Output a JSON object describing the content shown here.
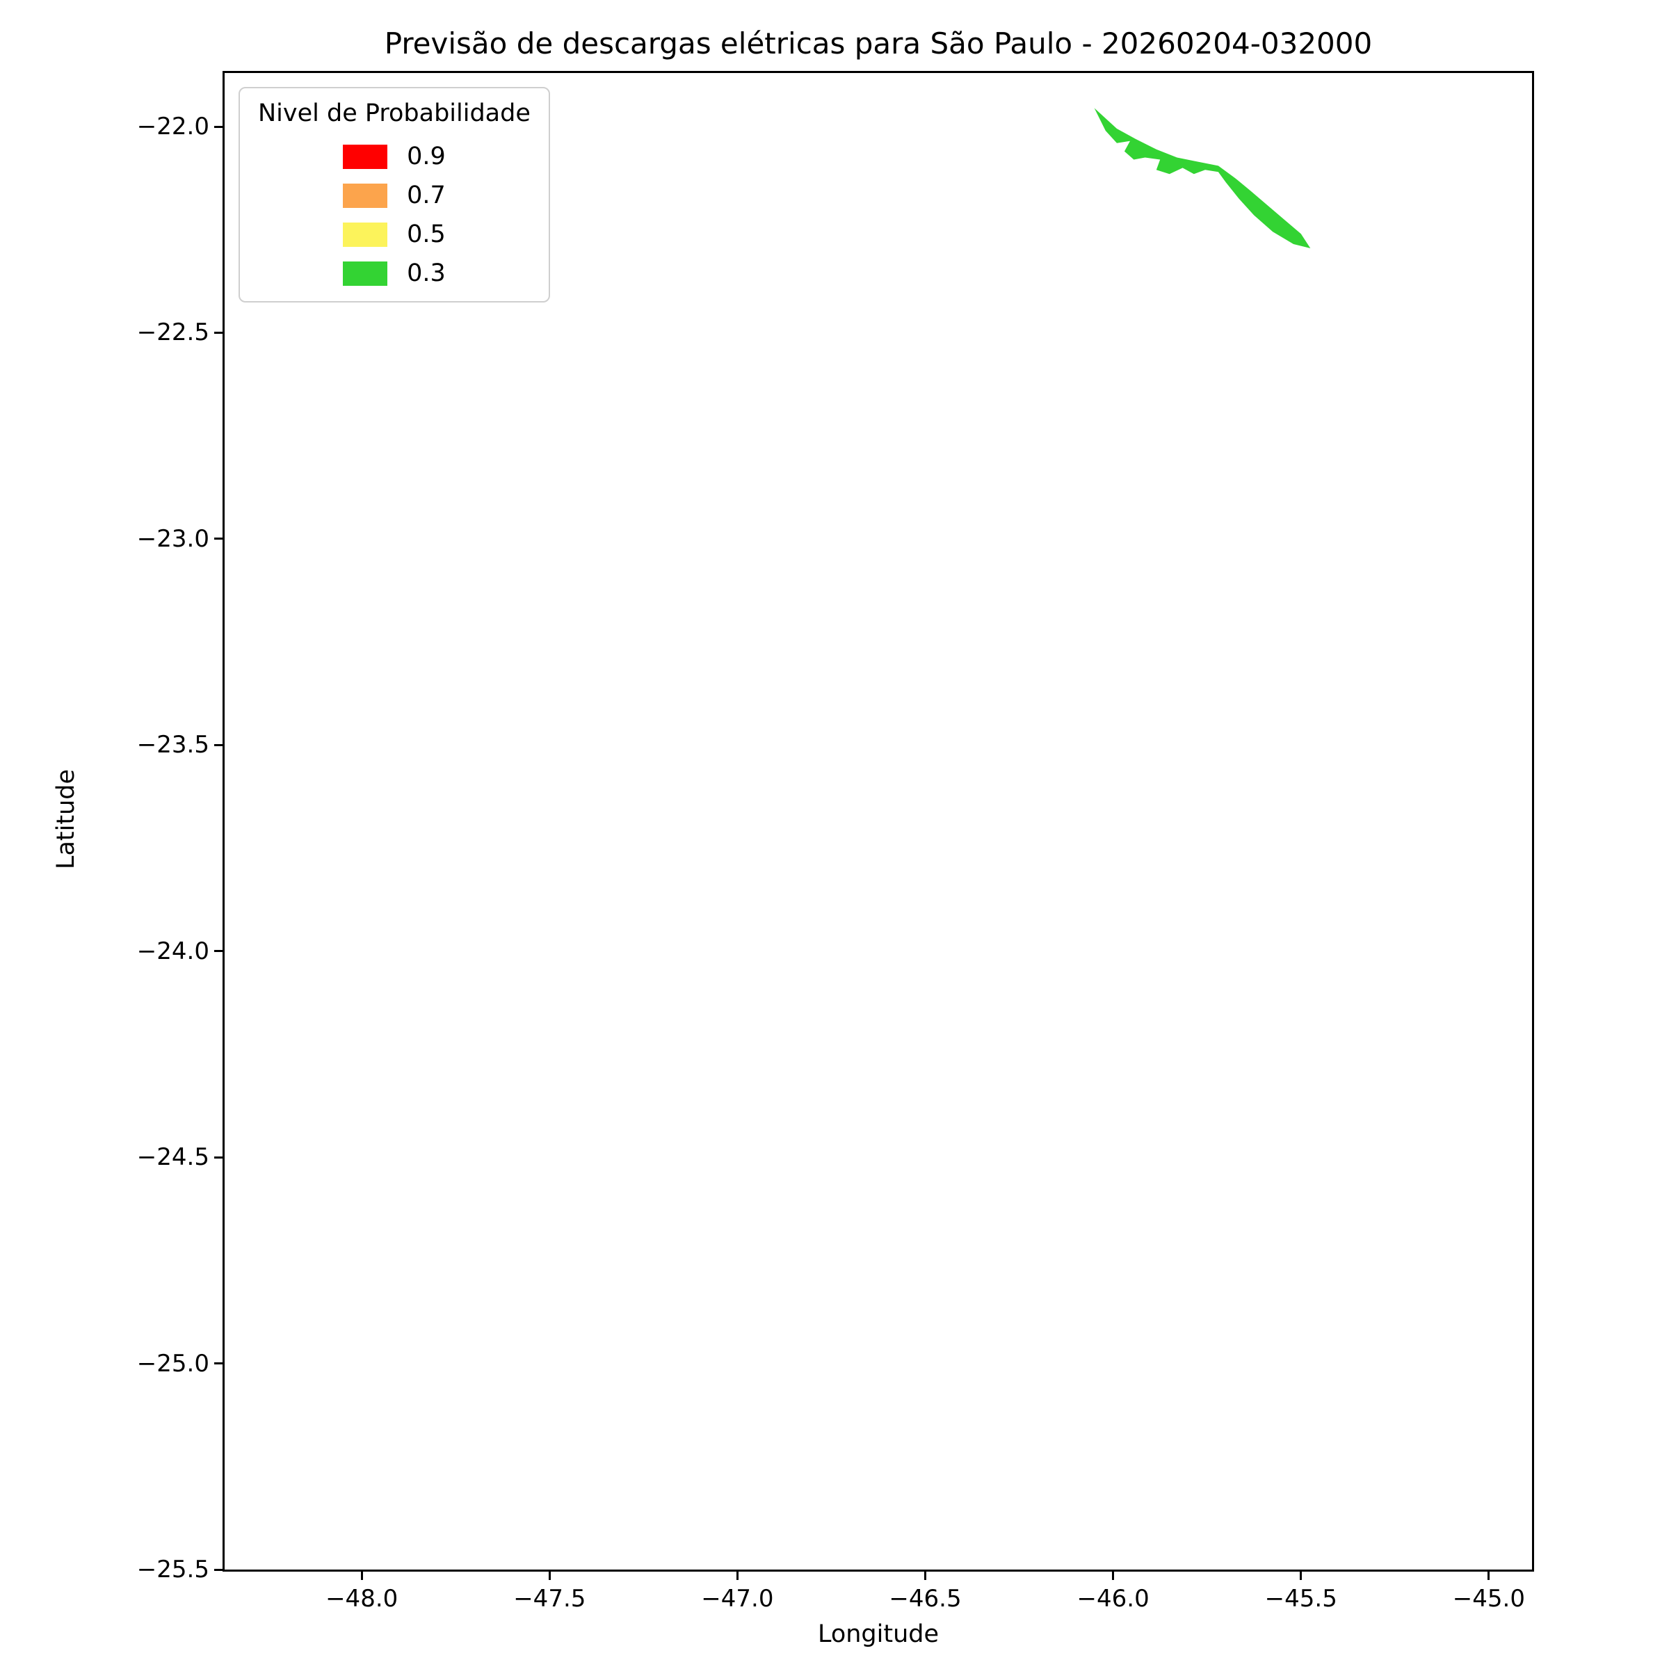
{
  "chart_data": {
    "type": "area",
    "title": "Previsão de descargas elétricas para São Paulo - 20260204-032000",
    "xlabel": "Longitude",
    "ylabel": "Latitude",
    "xlim": [
      -48.365,
      -44.885
    ],
    "ylim": [
      -25.5,
      -21.87
    ],
    "xticks": [
      -48.0,
      -47.5,
      -47.0,
      -46.5,
      -46.0,
      -45.5,
      -45.0
    ],
    "yticks": [
      -22.0,
      -22.5,
      -23.0,
      -23.5,
      -24.0,
      -24.5,
      -25.0,
      -25.5
    ],
    "grid": false,
    "legend": {
      "title": "Nivel de Probabilidade",
      "position": "upper left",
      "entries": [
        {
          "label": "0.9",
          "color": "#ff0000"
        },
        {
          "label": "0.7",
          "color": "#fca44c"
        },
        {
          "label": "0.5",
          "color": "#fcf35b"
        },
        {
          "label": "0.3",
          "color": "#33d333"
        }
      ]
    },
    "regions": [
      {
        "probability_level": "0.3",
        "color": "#33d333",
        "points": [
          [
            -46.05,
            -21.955
          ],
          [
            -45.99,
            -22.005
          ],
          [
            -45.94,
            -22.03
          ],
          [
            -45.885,
            -22.055
          ],
          [
            -45.83,
            -22.075
          ],
          [
            -45.775,
            -22.085
          ],
          [
            -45.72,
            -22.095
          ],
          [
            -45.675,
            -22.125
          ],
          [
            -45.635,
            -22.155
          ],
          [
            -45.59,
            -22.19
          ],
          [
            -45.545,
            -22.225
          ],
          [
            -45.5,
            -22.26
          ],
          [
            -45.475,
            -22.295
          ],
          [
            -45.52,
            -22.285
          ],
          [
            -45.575,
            -22.255
          ],
          [
            -45.625,
            -22.215
          ],
          [
            -45.665,
            -22.175
          ],
          [
            -45.7,
            -22.135
          ],
          [
            -45.72,
            -22.11
          ],
          [
            -45.755,
            -22.105
          ],
          [
            -45.785,
            -22.115
          ],
          [
            -45.815,
            -22.1
          ],
          [
            -45.85,
            -22.115
          ],
          [
            -45.885,
            -22.105
          ],
          [
            -45.875,
            -22.08
          ],
          [
            -45.915,
            -22.075
          ],
          [
            -45.945,
            -22.08
          ],
          [
            -45.97,
            -22.06
          ],
          [
            -45.955,
            -22.035
          ],
          [
            -45.99,
            -22.04
          ],
          [
            -46.02,
            -22.01
          ]
        ]
      }
    ]
  }
}
